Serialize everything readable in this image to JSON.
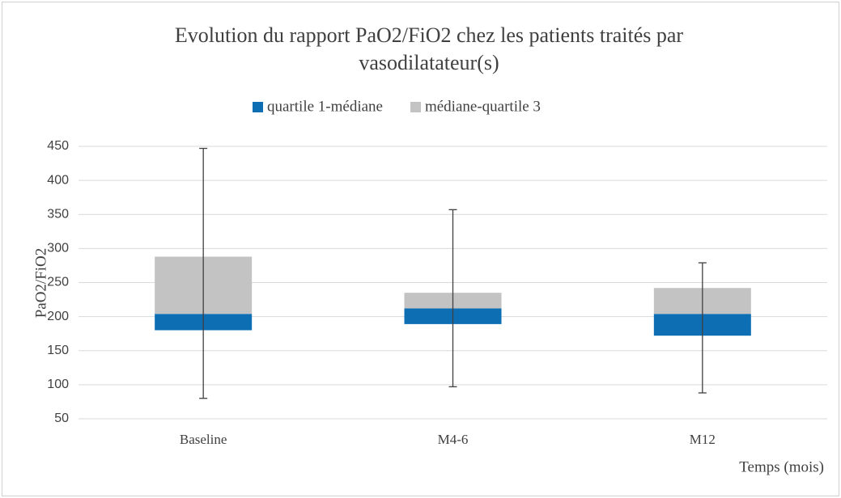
{
  "chart_data": {
    "type": "box",
    "title": [
      "Evolution du rapport PaO2/FiO2 chez les patients traités par",
      "vasodilatateur(s)"
    ],
    "y_label": "PaO2/FiO2",
    "x_label": "Temps (mois)",
    "categories": [
      "Baseline",
      "M4-6",
      "M12"
    ],
    "min": [
      80,
      97,
      88
    ],
    "q1": [
      180,
      189,
      172
    ],
    "median": [
      204,
      212,
      204
    ],
    "q3": [
      288,
      235,
      242
    ],
    "max": [
      447,
      357,
      279
    ],
    "series": [
      {
        "name": "quartile 1-médiane",
        "color": "#0e6eb4"
      },
      {
        "name": "médiane-quartile 3",
        "color": "#c3c3c3"
      }
    ],
    "ylim": [
      50,
      450
    ],
    "yticks": [
      50,
      100,
      150,
      200,
      250,
      300,
      350,
      400,
      450
    ],
    "grid": true,
    "legend": "top"
  }
}
